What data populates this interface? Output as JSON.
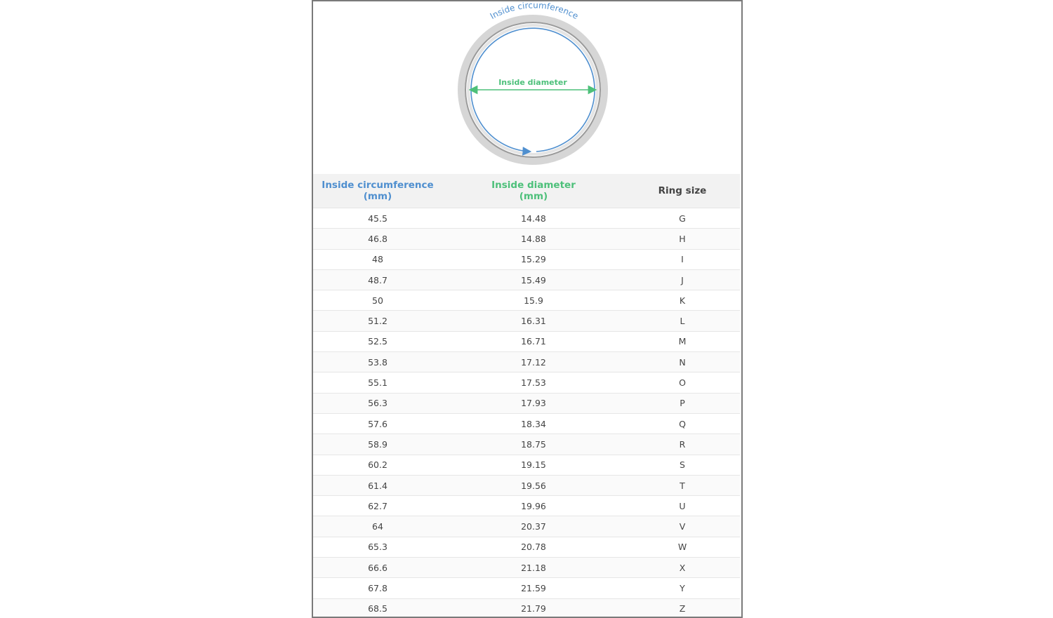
{
  "diagram": {
    "circumference_label": "Inside circumference",
    "diameter_label": "Inside diameter",
    "colors": {
      "circumference": "#4f8fcf",
      "diameter": "#4dc07a",
      "ring": "#c8c8c8"
    }
  },
  "table": {
    "headers": [
      {
        "line1": "Inside circumference",
        "line2": "(mm)"
      },
      {
        "line1": "Inside diameter",
        "line2": "(mm)"
      },
      {
        "line1": "Ring size",
        "line2": ""
      }
    ],
    "rows": [
      [
        "45.5",
        "14.48",
        "G"
      ],
      [
        "46.8",
        "14.88",
        "H"
      ],
      [
        "48",
        "15.29",
        "I"
      ],
      [
        "48.7",
        "15.49",
        "J"
      ],
      [
        "50",
        "15.9",
        "K"
      ],
      [
        "51.2",
        "16.31",
        "L"
      ],
      [
        "52.5",
        "16.71",
        "M"
      ],
      [
        "53.8",
        "17.12",
        "N"
      ],
      [
        "55.1",
        "17.53",
        "O"
      ],
      [
        "56.3",
        "17.93",
        "P"
      ],
      [
        "57.6",
        "18.34",
        "Q"
      ],
      [
        "58.9",
        "18.75",
        "R"
      ],
      [
        "60.2",
        "19.15",
        "S"
      ],
      [
        "61.4",
        "19.56",
        "T"
      ],
      [
        "62.7",
        "19.96",
        "U"
      ],
      [
        "64",
        "20.37",
        "V"
      ],
      [
        "65.3",
        "20.78",
        "W"
      ],
      [
        "66.6",
        "21.18",
        "X"
      ],
      [
        "67.8",
        "21.59",
        "Y"
      ],
      [
        "68.5",
        "21.79",
        "Z"
      ]
    ]
  }
}
